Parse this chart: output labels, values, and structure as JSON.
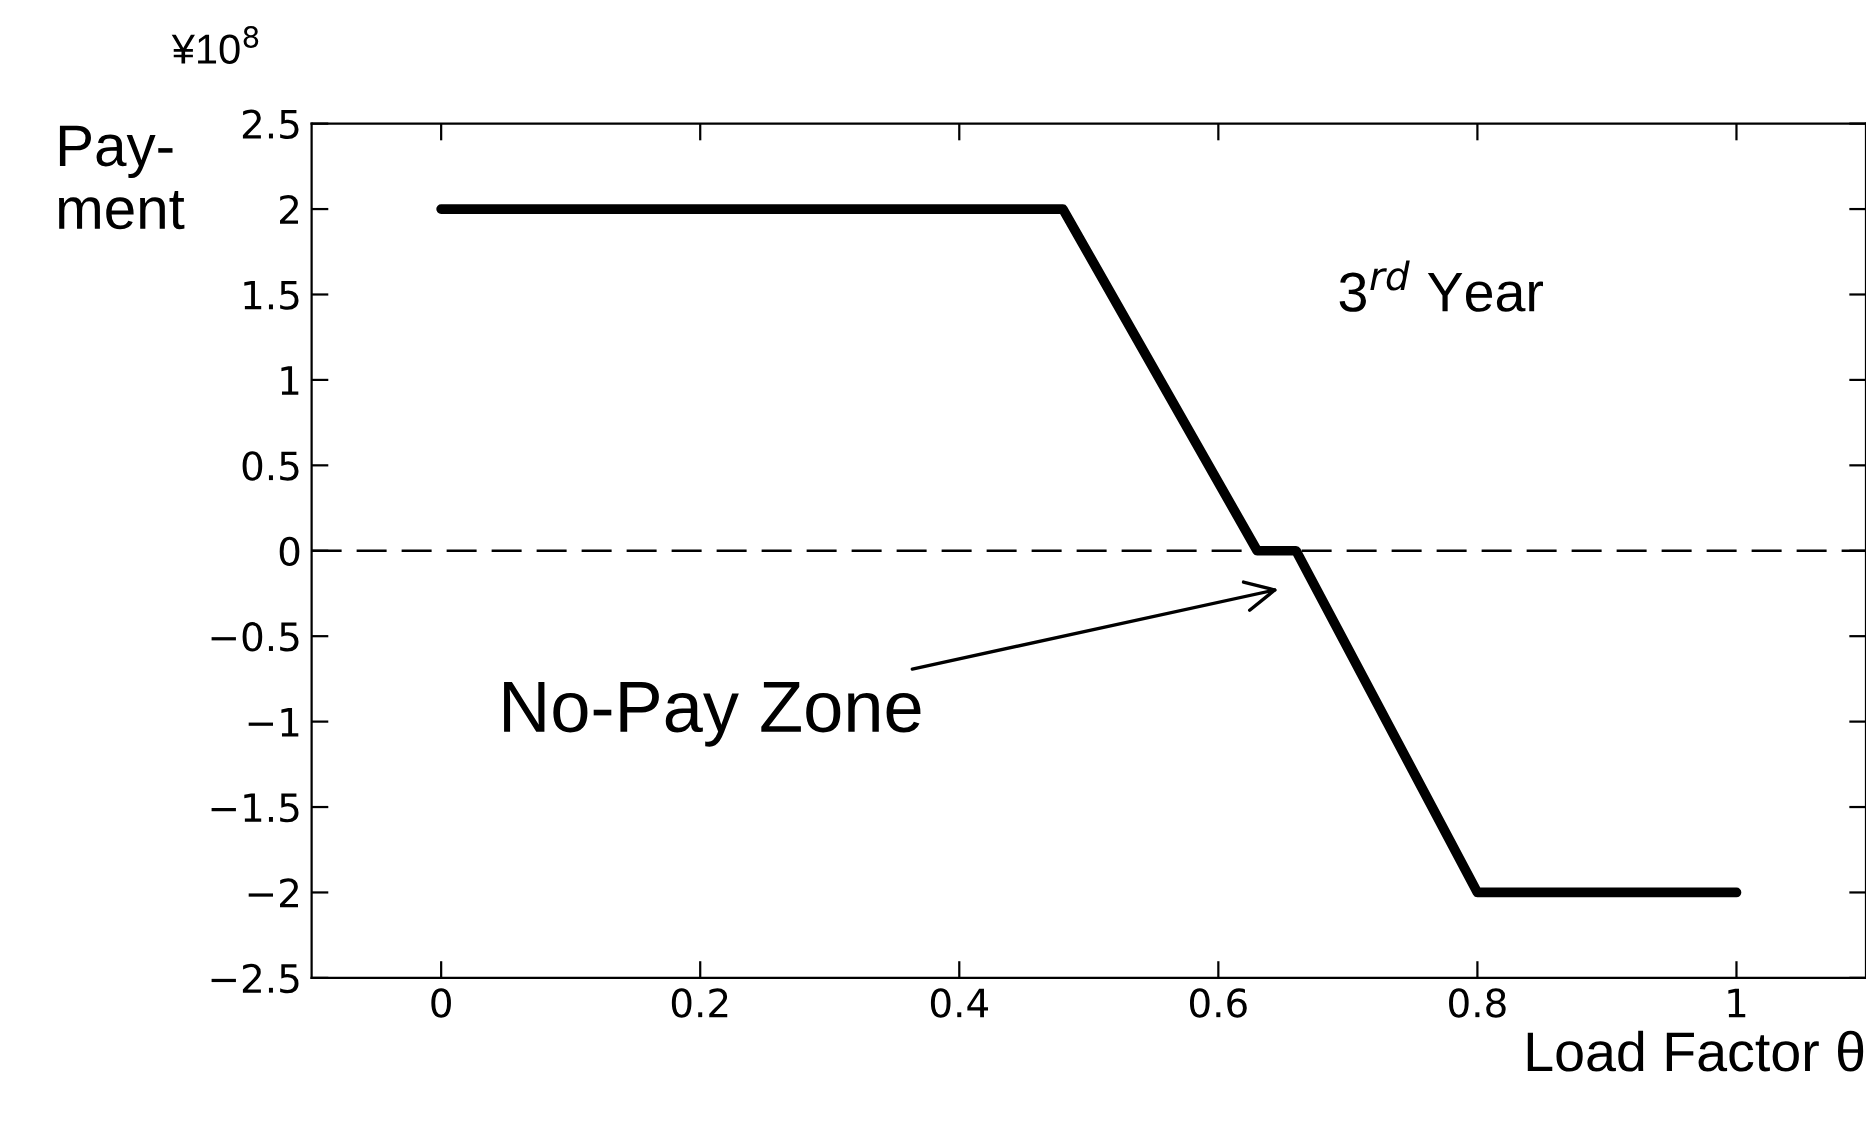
{
  "chart_data": {
    "type": "line",
    "xlabel": "Load Factor θ",
    "ylabel": "Pay-\nment",
    "x": [
      0,
      0.48,
      0.63,
      0.66,
      0.8,
      1
    ],
    "series": [
      {
        "color": "#000000",
        "values": [
          2,
          2,
          0,
          0,
          -2,
          -2
        ]
      }
    ],
    "xlim": [
      -0.1,
      1.1
    ],
    "ylim": [
      -2.5,
      2.5
    ],
    "xticks": [
      0,
      0.2,
      0.4,
      0.6,
      0.8,
      1
    ],
    "yticks": [
      -2.5,
      -2,
      -1.5,
      -1,
      -0.5,
      0,
      0.5,
      1,
      1.5,
      2,
      2.5
    ],
    "ref_lines": [
      {
        "axis": "y",
        "value": 0,
        "color": "#000000",
        "line_style": "dashed"
      }
    ],
    "annotations": [
      "¥10$^{8}$",
      "3$^{rd}$ Year",
      "No-Pay Zone"
    ],
    "grid": false,
    "legend": false,
    "marker": "none",
    "line_style": "solid"
  }
}
